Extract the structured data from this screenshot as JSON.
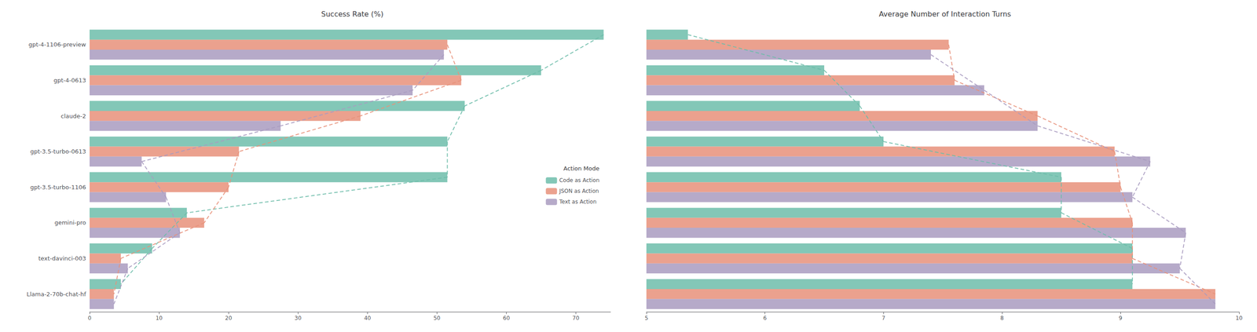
{
  "chart_data": [
    {
      "type": "bar",
      "orientation": "horizontal",
      "title": "Success Rate (%)",
      "categories": [
        "gpt-4-1106-preview",
        "gpt-4-0613",
        "claude-2",
        "gpt-3.5-turbo-0613",
        "gpt-3.5-turbo-1106",
        "gemini-pro",
        "text-davinci-003",
        "Llama-2-70b-chat-hf"
      ],
      "series": [
        {
          "name": "Code as Action",
          "color": "#6dbdaa",
          "line_style": "dashed",
          "values": [
            74.0,
            65.0,
            54.0,
            51.5,
            51.5,
            14.0,
            9.0,
            4.5
          ]
        },
        {
          "name": "JSON as Action",
          "color": "#e8917a",
          "line_style": "dashed",
          "values": [
            51.5,
            53.5,
            39.0,
            21.5,
            20.0,
            16.5,
            4.5,
            3.5
          ]
        },
        {
          "name": "Text as Action",
          "color": "#a99bc0",
          "line_style": "dashed",
          "values": [
            51.0,
            46.5,
            27.5,
            7.5,
            11.0,
            13.0,
            5.5,
            3.5
          ]
        }
      ],
      "xlim": [
        0,
        75
      ],
      "xticks": [
        0,
        10,
        20,
        30,
        40,
        50,
        60,
        70
      ],
      "grid": false,
      "legend": "right",
      "legend_title": "Action Mode"
    },
    {
      "type": "bar",
      "orientation": "horizontal",
      "title": "Average Number of Interaction Turns",
      "categories": [
        "gpt-4-1106-preview",
        "gpt-4-0613",
        "claude-2",
        "gpt-3.5-turbo-0613",
        "gpt-3.5-turbo-1106",
        "gemini-pro",
        "text-davinci-003",
        "Llama-2-70b-chat-hf"
      ],
      "series": [
        {
          "name": "Code as Action",
          "color": "#6dbdaa",
          "line_style": "dashed",
          "values": [
            5.35,
            6.5,
            6.8,
            7.0,
            8.5,
            8.5,
            9.1,
            9.1
          ]
        },
        {
          "name": "JSON as Action",
          "color": "#e8917a",
          "line_style": "dashed",
          "values": [
            7.55,
            7.6,
            8.3,
            8.95,
            9.0,
            9.1,
            9.1,
            9.8
          ]
        },
        {
          "name": "Text as Action",
          "color": "#a99bc0",
          "line_style": "dashed",
          "values": [
            7.4,
            7.85,
            8.3,
            9.25,
            9.1,
            9.55,
            9.5,
            9.8
          ]
        }
      ],
      "xlim": [
        5,
        10
      ],
      "xticks": [
        5,
        6,
        7,
        8,
        9,
        10
      ],
      "grid": false,
      "tick_labels": "x"
    }
  ]
}
